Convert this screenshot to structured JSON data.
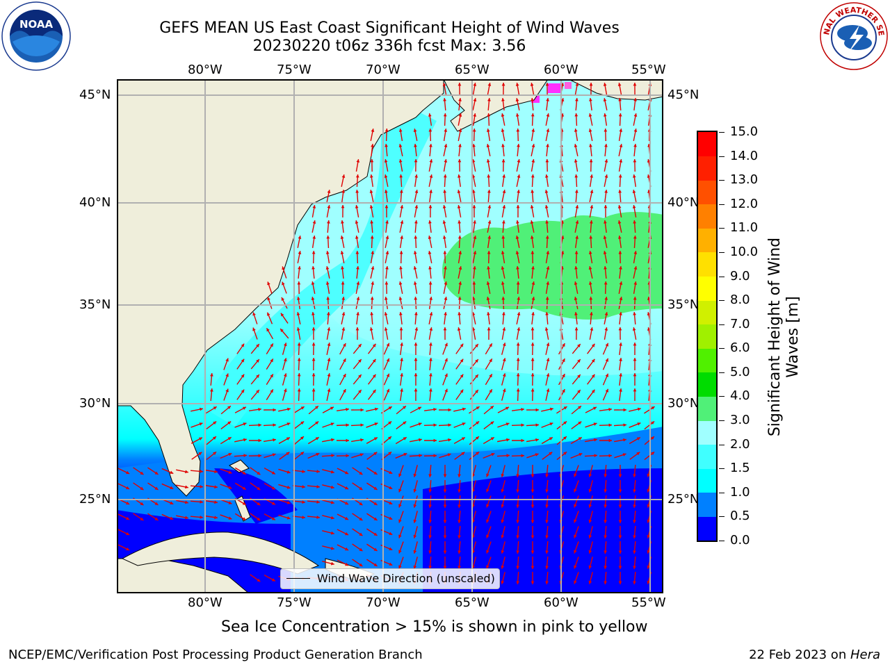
{
  "title_line1": "GEFS MEAN US East Coast Significant Height of Wind Waves",
  "title_line2": "20230220 t06z 336h fcst   Max: 3.56",
  "lon_labels": [
    "80°W",
    "75°W",
    "70°W",
    "65°W",
    "60°W",
    "55°W"
  ],
  "lat_labels": [
    "45°N",
    "40°N",
    "35°N",
    "30°N",
    "25°N"
  ],
  "colorbar": {
    "label": "Significant Height of Wind Waves [m]",
    "ticks": [
      "0.0",
      "0.5",
      "1.0",
      "1.5",
      "2.0",
      "3.0",
      "4.0",
      "5.0",
      "6.0",
      "7.0",
      "8.0",
      "9.0",
      "10.0",
      "11.0",
      "12.0",
      "13.0",
      "14.0",
      "15.0"
    ],
    "colors": [
      "#0000ff",
      "#0080ff",
      "#00ffff",
      "#40ffff",
      "#a0ffff",
      "#50f078",
      "#00dc00",
      "#50f000",
      "#a0f000",
      "#d0f000",
      "#ffff00",
      "#ffe000",
      "#ffb000",
      "#ff8000",
      "#ff5000",
      "#ff2000",
      "#ff0000"
    ]
  },
  "legend": {
    "label": "Wind Wave Direction (unscaled)"
  },
  "ice_note": "Sea Ice Concentration > 15% is shown in pink to yellow",
  "footer_left": "NCEP/EMC/Verification Post Processing Product Generation Branch",
  "footer_date": "22 Feb 2023 on ",
  "footer_machine": "Hera",
  "logos": {
    "left": "NOAA",
    "right": "NATIONAL WEATHER SERVICE"
  }
}
